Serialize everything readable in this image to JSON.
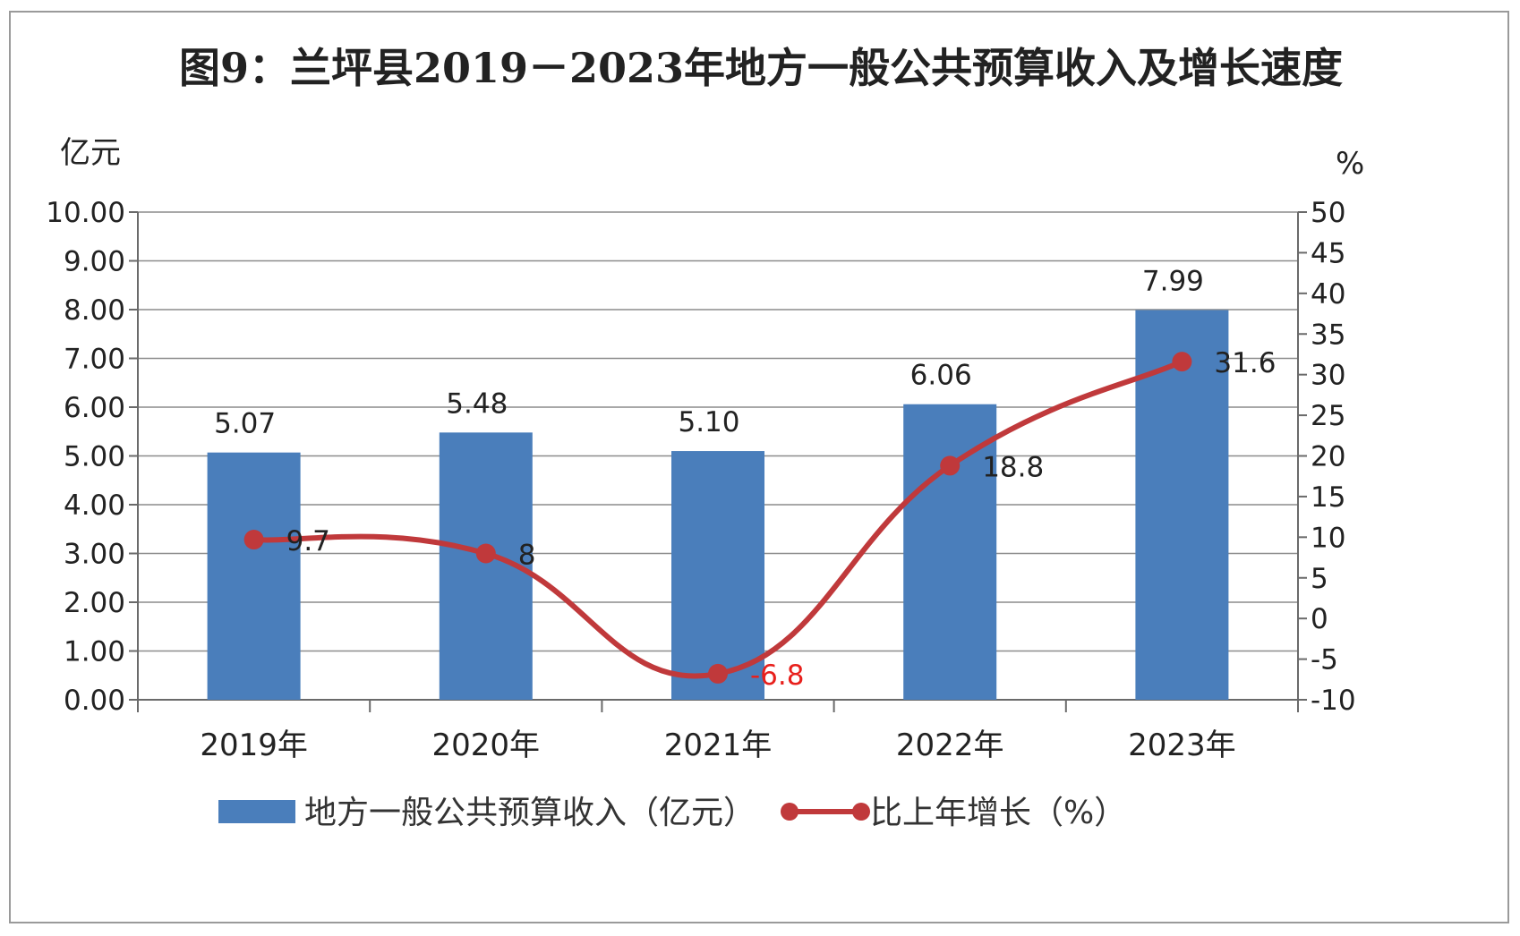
{
  "chart_data": {
    "type": "bar",
    "title": "图9：兰坪县2019－2023年地方一般公共预算收入及增长速度",
    "categories": [
      "2019年",
      "2020年",
      "2021年",
      "2022年",
      "2023年"
    ],
    "y_left": {
      "unit": "亿元",
      "range": [
        0,
        10
      ],
      "step": 1,
      "ticks": [
        "0.00",
        "1.00",
        "2.00",
        "3.00",
        "4.00",
        "5.00",
        "6.00",
        "7.00",
        "8.00",
        "9.00",
        "10.00"
      ]
    },
    "y_right": {
      "unit": "%",
      "range": [
        -10,
        50
      ],
      "step": 5,
      "ticks": [
        "-10",
        "-5",
        "0",
        "5",
        "10",
        "15",
        "20",
        "25",
        "30",
        "35",
        "40",
        "45",
        "50"
      ]
    },
    "series": [
      {
        "name": "地方一般公共预算收入（亿元）",
        "kind": "bar",
        "axis": "left",
        "color": "#4a7ebb",
        "values": [
          5.07,
          5.48,
          5.1,
          6.06,
          7.99
        ],
        "labels": [
          "5.07",
          "5.48",
          "5.10",
          "6.06",
          "7.99"
        ]
      },
      {
        "name": "比上年增长（%）",
        "kind": "line",
        "axis": "right",
        "color": "#c0393b",
        "values": [
          9.7,
          8,
          -6.8,
          18.8,
          31.6
        ],
        "labels": [
          "9.7",
          "8",
          "-6.8",
          "18.8",
          "31.6"
        ],
        "negative_label_color": "#e8201c"
      }
    ],
    "grid": true,
    "legend_position": "bottom"
  }
}
